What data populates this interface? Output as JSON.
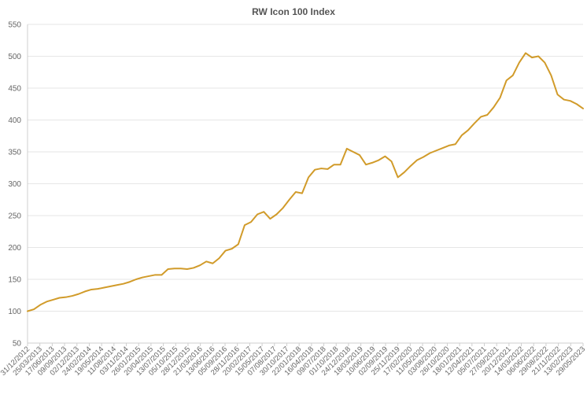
{
  "chart_data": {
    "type": "line",
    "title": "RW Icon 100 Index",
    "xlabel": "",
    "ylabel": "",
    "ylim": [
      50,
      550
    ],
    "yticks": [
      50,
      100,
      150,
      200,
      250,
      300,
      350,
      400,
      450,
      500,
      550
    ],
    "grid": true,
    "legend": "none",
    "colors": {
      "line": "#d19b2a",
      "grid": "#e6e6e6",
      "text": "#666666"
    },
    "x_tick_labels": [
      "31/12/2012",
      "25/03/2013",
      "17/06/2013",
      "09/09/2013",
      "02/12/2013",
      "24/02/2014",
      "19/05/2014",
      "11/08/2014",
      "03/11/2014",
      "26/01/2015",
      "20/04/2015",
      "13/07/2015",
      "05/10/2015",
      "28/12/2015",
      "21/03/2016",
      "13/06/2016",
      "05/09/2016",
      "28/11/2016",
      "20/02/2017",
      "15/05/2017",
      "07/08/2017",
      "30/10/2017",
      "22/01/2018",
      "16/04/2018",
      "09/07/2018",
      "01/10/2018",
      "24/12/2018",
      "18/03/2019",
      "10/06/2019",
      "02/09/2019",
      "25/11/2019",
      "17/02/2020",
      "11/05/2020",
      "03/08/2020",
      "26/10/2020",
      "18/01/2021",
      "12/04/2021",
      "05/07/2021",
      "27/09/2021",
      "20/12/2021",
      "14/03/2022",
      "06/06/2022",
      "29/08/2022",
      "21/11/2022",
      "13/02/2023",
      "29/05/2023"
    ],
    "series": [
      {
        "values": [
          100,
          103,
          110,
          115,
          118,
          121,
          122,
          124,
          127,
          131,
          134,
          135,
          137,
          139,
          141,
          143,
          146,
          150,
          153,
          155,
          157,
          157,
          166,
          167,
          167,
          166,
          168,
          172,
          178,
          175,
          183,
          195,
          198,
          205,
          235,
          240,
          252,
          256,
          245,
          252,
          262,
          275,
          287,
          285,
          310,
          322,
          324,
          323,
          330,
          330,
          355,
          350,
          345,
          330,
          333,
          337,
          343,
          335,
          310,
          318,
          328,
          337,
          342,
          348,
          352,
          356,
          360,
          362,
          376,
          384,
          395,
          405,
          408,
          420,
          435,
          462,
          470,
          490,
          505,
          498,
          500,
          490,
          470,
          440,
          432,
          430,
          425,
          418
        ]
      }
    ]
  }
}
